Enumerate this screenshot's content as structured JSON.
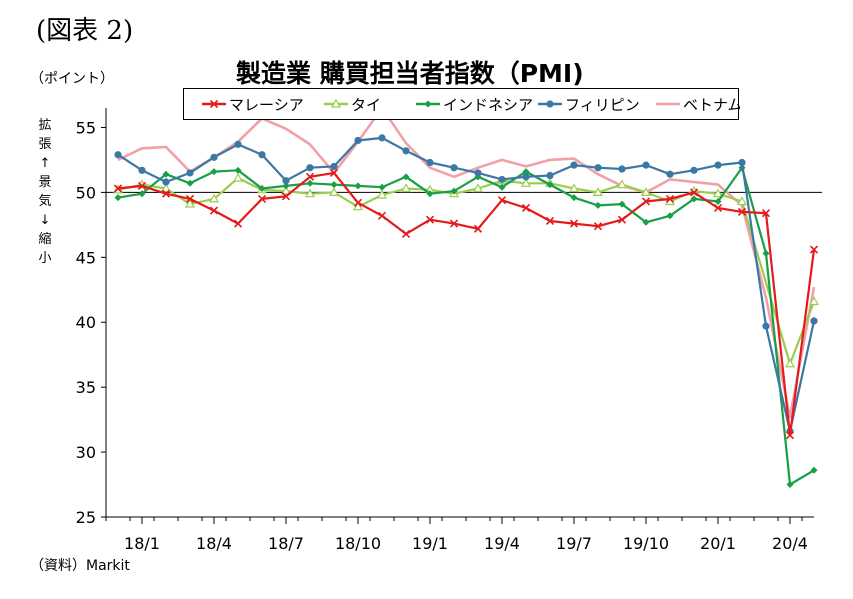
{
  "figure_label": "(図表 2)",
  "unit_label": "（ポイント）",
  "source_label": "（資料）Markit",
  "colors": {
    "malaysia": "#e41a1c",
    "thailand": "#9acd4f",
    "indonesia": "#1a9e46",
    "philippines": "#3b78a6",
    "vietnam": "#f0a0a6",
    "baseline": "#000000",
    "axis": "#000000"
  },
  "chart_data": {
    "type": "line",
    "title": "製造業 購買担当者指数（PMI)",
    "ylabel_chars": [
      "拡",
      "張",
      "↑",
      "景",
      "気",
      "↓",
      "縮",
      "小"
    ],
    "ylim": [
      25,
      56.5
    ],
    "yticks": [
      25,
      30,
      35,
      40,
      45,
      50,
      55
    ],
    "baseline": 50,
    "x_tick_labels": [
      "18/1",
      "18/4",
      "18/7",
      "18/10",
      "19/1",
      "19/4",
      "19/7",
      "19/10",
      "20/1",
      "20/4"
    ],
    "x_tick_index": [
      1,
      4,
      7,
      10,
      13,
      16,
      19,
      22,
      25,
      28
    ],
    "x": [
      "17/12",
      "18/1",
      "18/2",
      "18/3",
      "18/4",
      "18/5",
      "18/6",
      "18/7",
      "18/8",
      "18/9",
      "18/10",
      "18/11",
      "18/12",
      "19/1",
      "19/2",
      "19/3",
      "19/4",
      "19/5",
      "19/6",
      "19/7",
      "19/8",
      "19/9",
      "19/10",
      "19/11",
      "19/12",
      "20/1",
      "20/2",
      "20/3",
      "20/4",
      "20/5"
    ],
    "legend_position": "top-center",
    "series": [
      {
        "name": "マレーシア",
        "key": "malaysia",
        "marker": "x",
        "values": [
          50.3,
          50.5,
          49.9,
          49.5,
          48.6,
          47.6,
          49.5,
          49.7,
          51.2,
          51.5,
          49.2,
          48.2,
          46.8,
          47.9,
          47.6,
          47.2,
          49.4,
          48.8,
          47.8,
          47.6,
          47.4,
          47.9,
          49.3,
          49.5,
          50.0,
          48.8,
          48.5,
          48.4,
          31.3,
          45.6
        ]
      },
      {
        "name": "タイ",
        "key": "thailand",
        "marker": "triangle",
        "values": [
          50.2,
          50.6,
          50.3,
          49.1,
          49.5,
          51.1,
          50.2,
          50.1,
          49.9,
          50.0,
          48.9,
          49.8,
          50.3,
          50.2,
          49.9,
          50.3,
          50.9,
          50.7,
          50.7,
          50.3,
          50.0,
          50.6,
          50.0,
          49.3,
          50.1,
          49.9,
          49.3,
          null,
          36.8,
          41.6
        ]
      },
      {
        "name": "インドネシア",
        "key": "indonesia",
        "marker": "diamond",
        "values": [
          49.6,
          49.9,
          51.4,
          50.7,
          51.6,
          51.7,
          50.3,
          50.5,
          50.7,
          50.6,
          50.5,
          50.4,
          51.2,
          49.9,
          50.1,
          51.2,
          50.4,
          51.6,
          50.6,
          49.6,
          49.0,
          49.1,
          47.7,
          48.2,
          49.5,
          49.3,
          51.9,
          45.3,
          27.5,
          28.6
        ]
      },
      {
        "name": "フィリピン",
        "key": "philippines",
        "marker": "circle",
        "values": [
          52.9,
          51.7,
          50.8,
          51.5,
          52.7,
          53.7,
          52.9,
          50.9,
          51.9,
          52.0,
          54.0,
          54.2,
          53.2,
          52.3,
          51.9,
          51.5,
          51.0,
          51.2,
          51.3,
          52.1,
          51.9,
          51.8,
          52.1,
          51.4,
          51.7,
          52.1,
          52.3,
          39.7,
          31.6,
          40.1
        ]
      },
      {
        "name": "ベトナム",
        "key": "vietnam",
        "marker": "square",
        "values": [
          52.5,
          53.4,
          53.5,
          51.6,
          52.7,
          53.9,
          55.7,
          54.9,
          53.7,
          51.5,
          53.9,
          56.5,
          53.8,
          51.9,
          51.2,
          51.9,
          52.5,
          52.0,
          52.5,
          52.6,
          51.4,
          50.5,
          50.0,
          51.0,
          50.8,
          50.6,
          49.0,
          41.9,
          32.7,
          42.7
        ]
      }
    ]
  }
}
